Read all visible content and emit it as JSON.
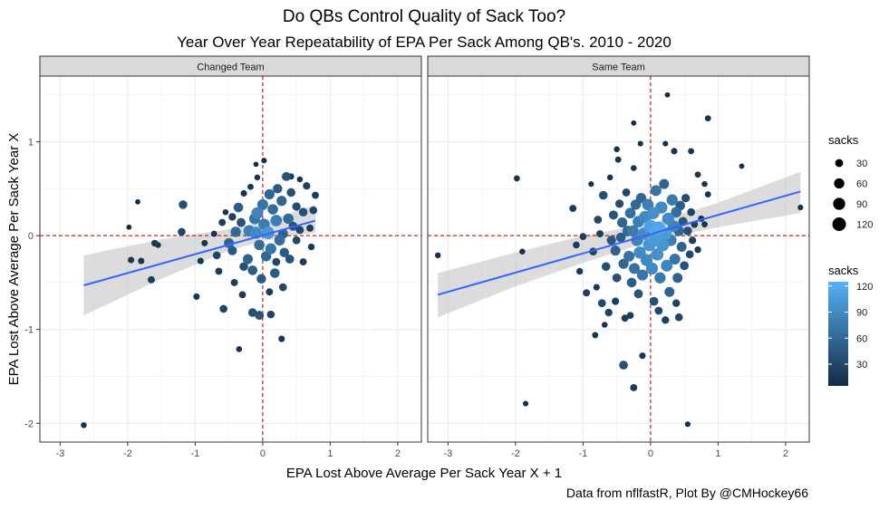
{
  "chart_data": {
    "type": "scatter",
    "title": "Do QBs Control Quality of Sack Too?",
    "subtitle": "Year Over Year Repeatability of EPA Per Sack Among QB's. 2010 - 2020",
    "xlabel": "EPA Lost Above Average Per Sack Year X + 1",
    "ylabel": "EPA Lost Above Average Per Sack Year X",
    "caption": "Data from nflfastR, Plot By @CMHockey66",
    "xlim": [
      -3.3,
      2.35
    ],
    "ylim": [
      -2.2,
      1.7
    ],
    "x_ticks": [
      -3,
      -2,
      -1,
      0,
      1,
      2
    ],
    "y_ticks": [
      -2,
      -1,
      0,
      1
    ],
    "reference_lines": {
      "x": 0,
      "y": 0,
      "color": "#cc2222",
      "style": "dashed"
    },
    "grid": true,
    "panel_background": "#ffffff",
    "strip_background": "#d9d9d9",
    "legend_position": "right",
    "legend_size": {
      "title": "sacks",
      "values": [
        30,
        60,
        90,
        120
      ]
    },
    "legend_color": {
      "title": "sacks",
      "ticks": [
        30,
        60,
        90,
        120
      ],
      "low_color": "#132b43",
      "high_color": "#56b1f7"
    },
    "trend_color": "#3366ff",
    "ci_color": "#bfbfbf",
    "facets": [
      {
        "name": "Changed Team",
        "trend": {
          "x": [
            -2.65,
            0.78
          ],
          "y": [
            -0.53,
            0.16
          ]
        },
        "ci": {
          "x": [
            -2.65,
            -1.5,
            -0.5,
            0.0,
            0.5,
            0.78
          ],
          "lower": [
            -0.85,
            -0.46,
            -0.16,
            -0.06,
            0.01,
            0.03
          ],
          "upper": [
            -0.21,
            -0.04,
            0.07,
            0.14,
            0.26,
            0.33
          ]
        },
        "points": [
          [
            -2.65,
            -2.02,
            12
          ],
          [
            -1.85,
            0.36,
            8
          ],
          [
            -1.98,
            0.09,
            8
          ],
          [
            -1.95,
            -0.26,
            16
          ],
          [
            -1.8,
            -0.27,
            16
          ],
          [
            -1.6,
            -0.08,
            18
          ],
          [
            -1.55,
            -0.1,
            12
          ],
          [
            -1.65,
            -0.47,
            22
          ],
          [
            -1.18,
            0.33,
            38
          ],
          [
            -1.2,
            0.04,
            28
          ],
          [
            -0.98,
            -0.65,
            16
          ],
          [
            -0.92,
            -0.27,
            16
          ],
          [
            -0.86,
            -0.08,
            16
          ],
          [
            -0.68,
            -0.21,
            28
          ],
          [
            -0.65,
            -0.38,
            22
          ],
          [
            -0.58,
            -0.78,
            28
          ],
          [
            -0.6,
            0.14,
            22
          ],
          [
            -0.5,
            -0.08,
            55
          ],
          [
            -0.45,
            -0.16,
            45
          ],
          [
            -0.4,
            0.04,
            60
          ],
          [
            -0.36,
            0.3,
            50
          ],
          [
            -0.32,
            0.14,
            42
          ],
          [
            -0.28,
            -0.33,
            38
          ],
          [
            -0.22,
            -0.25,
            55
          ],
          [
            -0.2,
            0.05,
            80
          ],
          [
            -0.15,
            -0.37,
            50
          ],
          [
            -0.12,
            0.18,
            70
          ],
          [
            -0.1,
            0.03,
            90
          ],
          [
            -0.08,
            0.24,
            85
          ],
          [
            -0.05,
            -0.1,
            62
          ],
          [
            -0.02,
            -0.46,
            48
          ],
          [
            0.0,
            0.33,
            70
          ],
          [
            0.02,
            0.12,
            78
          ],
          [
            0.05,
            -0.22,
            60
          ],
          [
            0.08,
            0.03,
            100
          ],
          [
            0.1,
            0.44,
            58
          ],
          [
            0.12,
            -0.14,
            72
          ],
          [
            0.15,
            0.28,
            62
          ],
          [
            0.18,
            -0.4,
            50
          ],
          [
            0.2,
            0.16,
            80
          ],
          [
            0.22,
            0.5,
            48
          ],
          [
            0.25,
            -0.05,
            65
          ],
          [
            0.28,
            0.37,
            58
          ],
          [
            0.3,
            0.02,
            55
          ],
          [
            0.32,
            -0.18,
            48
          ],
          [
            0.35,
            0.63,
            42
          ],
          [
            0.38,
            0.18,
            62
          ],
          [
            0.4,
            -0.25,
            40
          ],
          [
            0.42,
            0.46,
            38
          ],
          [
            0.45,
            0.1,
            40
          ],
          [
            0.5,
            0.31,
            35
          ],
          [
            0.55,
            0.06,
            30
          ],
          [
            0.6,
            0.25,
            38
          ],
          [
            0.65,
            0.53,
            25
          ],
          [
            0.7,
            0.08,
            22
          ],
          [
            0.75,
            0.27,
            28
          ],
          [
            0.78,
            0.43,
            22
          ],
          [
            0.72,
            -0.12,
            18
          ],
          [
            0.6,
            -0.28,
            22
          ],
          [
            0.5,
            -0.05,
            30
          ],
          [
            -0.15,
            -0.82,
            38
          ],
          [
            -0.05,
            -0.85,
            42
          ],
          [
            0.12,
            -0.84,
            28
          ],
          [
            0.28,
            -1.1,
            16
          ],
          [
            -0.35,
            -1.21,
            12
          ],
          [
            -0.42,
            -0.5,
            22
          ],
          [
            -0.28,
            0.45,
            16
          ],
          [
            -0.18,
            0.52,
            14
          ],
          [
            -0.08,
            0.62,
            12
          ],
          [
            0.02,
            0.8,
            10
          ],
          [
            -0.1,
            0.76,
            8
          ],
          [
            -0.55,
            0.25,
            12
          ],
          [
            -0.72,
            0.02,
            14
          ],
          [
            0.42,
            0.63,
            14
          ],
          [
            0.55,
            0.6,
            12
          ],
          [
            0.3,
            -0.55,
            28
          ],
          [
            -0.3,
            -0.63,
            20
          ],
          [
            0.1,
            -0.6,
            22
          ],
          [
            0.2,
            -0.28,
            30
          ],
          [
            -0.45,
            0.2,
            26
          ]
        ]
      },
      {
        "name": "Same Team",
        "trend": {
          "x": [
            -3.15,
            2.22
          ],
          "y": [
            -0.63,
            0.47
          ]
        },
        "ci": {
          "x": [
            -3.15,
            -2.0,
            -1.0,
            0.0,
            1.0,
            2.22
          ],
          "lower": [
            -0.87,
            -0.54,
            -0.29,
            -0.06,
            0.09,
            0.24
          ],
          "upper": [
            -0.4,
            -0.18,
            0.0,
            0.13,
            0.35,
            0.68
          ]
        },
        "points": [
          [
            -3.15,
            -0.21,
            12
          ],
          [
            -1.98,
            0.61,
            14
          ],
          [
            -1.9,
            -0.17,
            12
          ],
          [
            -1.85,
            -1.79,
            10
          ],
          [
            -1.0,
            -0.01,
            20
          ],
          [
            -1.05,
            -0.38,
            18
          ],
          [
            -0.95,
            -0.61,
            22
          ],
          [
            -0.88,
            0.55,
            10
          ],
          [
            -0.85,
            -0.17,
            28
          ],
          [
            -0.82,
            -1.06,
            14
          ],
          [
            -0.78,
            0.17,
            30
          ],
          [
            -0.75,
            0.02,
            22
          ],
          [
            -0.72,
            -0.72,
            30
          ],
          [
            -0.7,
            0.43,
            38
          ],
          [
            -0.66,
            -0.33,
            38
          ],
          [
            -0.62,
            -0.82,
            26
          ],
          [
            -0.6,
            0.62,
            12
          ],
          [
            -0.58,
            -0.05,
            45
          ],
          [
            -0.55,
            0.22,
            42
          ],
          [
            -0.52,
            -0.16,
            55
          ],
          [
            -0.5,
            -0.45,
            40
          ],
          [
            -0.48,
            0.81,
            14
          ],
          [
            -0.46,
            0.34,
            35
          ],
          [
            -0.44,
            -0.02,
            50
          ],
          [
            -0.42,
            0.14,
            58
          ],
          [
            -0.4,
            -0.3,
            58
          ],
          [
            -0.38,
            -0.88,
            22
          ],
          [
            -0.36,
            0.46,
            30
          ],
          [
            -0.34,
            0.05,
            62
          ],
          [
            -0.32,
            -0.22,
            70
          ],
          [
            -0.3,
            0.24,
            66
          ],
          [
            -0.28,
            -0.5,
            50
          ],
          [
            -0.26,
            0.05,
            75
          ],
          [
            -0.24,
            -0.35,
            70
          ],
          [
            -0.22,
            0.33,
            60
          ],
          [
            -0.2,
            -0.05,
            85
          ],
          [
            -0.18,
            0.15,
            80
          ],
          [
            -0.16,
            -0.18,
            90
          ],
          [
            -0.14,
            0.4,
            60
          ],
          [
            -0.12,
            -0.42,
            72
          ],
          [
            -0.1,
            0.02,
            92
          ],
          [
            -0.08,
            0.2,
            90
          ],
          [
            -0.06,
            -0.26,
            88
          ],
          [
            -0.04,
            0.33,
            80
          ],
          [
            -0.02,
            -0.1,
            100
          ],
          [
            0.0,
            0.1,
            110
          ],
          [
            0.02,
            -0.35,
            90
          ],
          [
            0.04,
            0.24,
            95
          ],
          [
            0.06,
            -0.05,
            105
          ],
          [
            0.08,
            0.48,
            70
          ],
          [
            0.1,
            -0.2,
            95
          ],
          [
            0.12,
            0.08,
            115
          ],
          [
            0.14,
            -0.45,
            75
          ],
          [
            0.16,
            0.3,
            90
          ],
          [
            0.18,
            -0.1,
            100
          ],
          [
            0.2,
            0.55,
            55
          ],
          [
            0.22,
            0.02,
            105
          ],
          [
            0.24,
            -0.32,
            85
          ],
          [
            0.26,
            0.18,
            90
          ],
          [
            0.28,
            -0.6,
            55
          ],
          [
            0.3,
            -0.05,
            80
          ],
          [
            0.32,
            0.38,
            75
          ],
          [
            0.34,
            0.1,
            85
          ],
          [
            0.36,
            -0.25,
            70
          ],
          [
            0.38,
            0.25,
            65
          ],
          [
            0.4,
            -0.45,
            55
          ],
          [
            0.42,
            0.05,
            60
          ],
          [
            0.44,
            0.32,
            50
          ],
          [
            0.46,
            -0.12,
            55
          ],
          [
            0.48,
            0.15,
            45
          ],
          [
            0.5,
            -0.32,
            40
          ],
          [
            0.52,
            0.4,
            35
          ],
          [
            0.55,
            0.05,
            38
          ],
          [
            0.58,
            -0.2,
            30
          ],
          [
            0.6,
            0.25,
            28
          ],
          [
            0.62,
            -0.05,
            25
          ],
          [
            0.65,
            0.12,
            22
          ],
          [
            0.7,
            -0.15,
            18
          ],
          [
            0.75,
            0.18,
            16
          ],
          [
            0.8,
            0.12,
            14
          ],
          [
            0.25,
            1.5,
            8
          ],
          [
            0.85,
            1.25,
            14
          ],
          [
            1.35,
            0.74,
            8
          ],
          [
            -0.25,
            1.2,
            8
          ],
          [
            -0.15,
            0.98,
            10
          ],
          [
            -0.5,
            0.92,
            12
          ],
          [
            -0.25,
            0.72,
            12
          ],
          [
            0.22,
            0.98,
            10
          ],
          [
            0.35,
            0.9,
            16
          ],
          [
            0.6,
            0.9,
            14
          ],
          [
            0.7,
            0.65,
            14
          ],
          [
            0.8,
            0.55,
            12
          ],
          [
            2.22,
            0.3,
            10
          ],
          [
            0.85,
            0.44,
            14
          ],
          [
            -1.15,
            0.29,
            22
          ],
          [
            -1.1,
            -0.1,
            20
          ],
          [
            -0.4,
            -1.38,
            40
          ],
          [
            -0.25,
            -1.62,
            22
          ],
          [
            -0.12,
            -1.28,
            16
          ],
          [
            0.22,
            -0.9,
            26
          ],
          [
            0.42,
            -0.87,
            28
          ],
          [
            0.55,
            -2.01,
            10
          ],
          [
            -0.8,
            -0.55,
            16
          ],
          [
            -0.68,
            -0.95,
            12
          ],
          [
            0.05,
            -0.7,
            40
          ],
          [
            -0.18,
            -0.62,
            42
          ],
          [
            0.12,
            -0.8,
            30
          ],
          [
            0.38,
            -0.72,
            26
          ],
          [
            -0.52,
            -0.7,
            24
          ],
          [
            -0.3,
            -0.85,
            20
          ]
        ]
      }
    ]
  }
}
